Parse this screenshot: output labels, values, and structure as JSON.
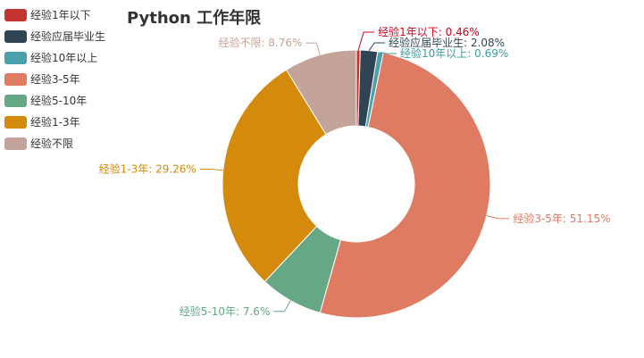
{
  "chart_data": {
    "type": "pie",
    "title": "Python 工作年限",
    "donut": true,
    "legend_position": "left",
    "slices": [
      {
        "name": "经验1年以下",
        "value": 0.46,
        "label": "经验1年以下: 0.46%",
        "color": "#c23531"
      },
      {
        "name": "经验应届毕业生",
        "value": 2.08,
        "label": "经验应届毕业生: 2.08%",
        "color": "#2f4554"
      },
      {
        "name": "经验10年以上",
        "value": 0.69,
        "label": "经验10年以上: 0.69%",
        "color": "#4aa1ab"
      },
      {
        "name": "经验3-5年",
        "value": 51.15,
        "label": "经验3-5年: 51.15%",
        "color": "#e07b63"
      },
      {
        "name": "经验5-10年",
        "value": 7.6,
        "label": "经验5-10年: 7.6%",
        "color": "#66a785"
      },
      {
        "name": "经验1-3年",
        "value": 29.26,
        "label": "经验1-3年: 29.26%",
        "color": "#d48a0a"
      },
      {
        "name": "经验不限",
        "value": 8.76,
        "label": "经验不限: 8.76%",
        "color": "#c4a39b"
      }
    ],
    "legend_label_colors": {
      "经验1年以下": "#d4001c",
      "经验应届毕业生": "#2f4554",
      "经验10年以上": "#3d9aa3"
    }
  }
}
